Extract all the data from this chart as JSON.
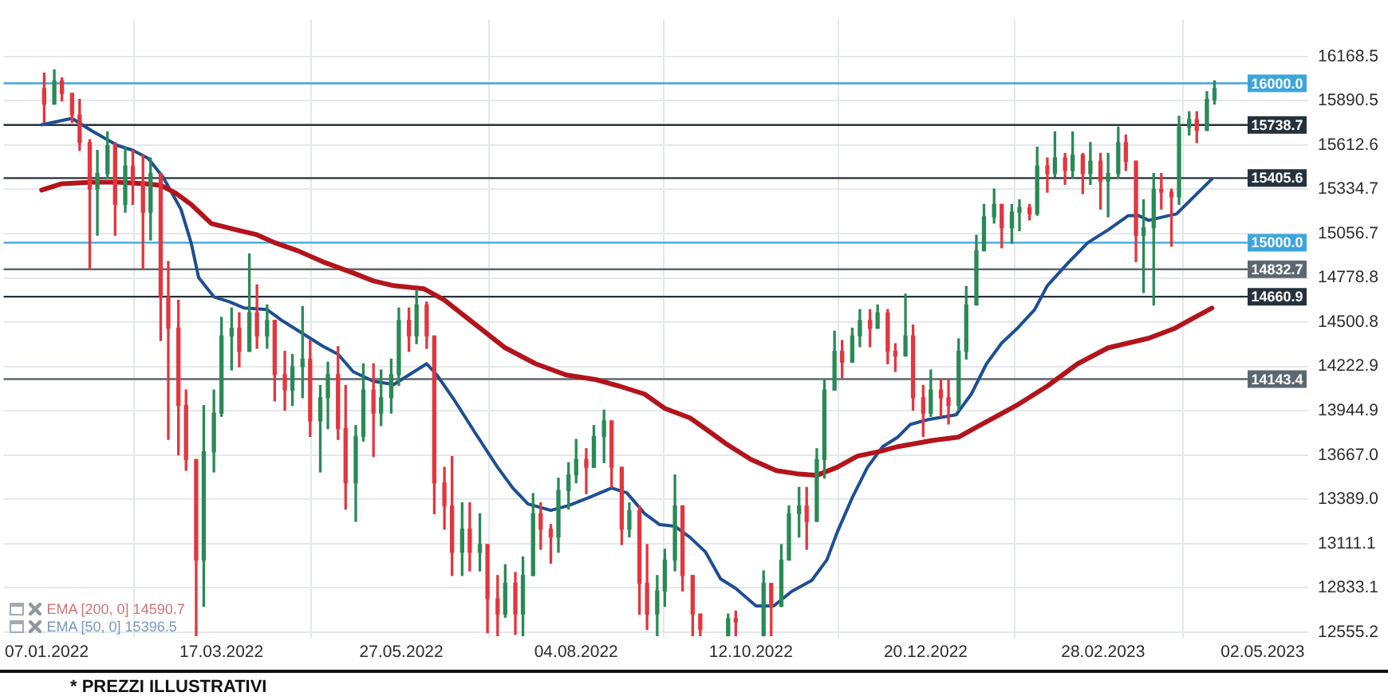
{
  "chart_data": {
    "type": "candlestick",
    "x": [
      "2022-01-06",
      "2022-01-10",
      "2022-01-13",
      "2022-01-17",
      "2022-01-20",
      "2022-01-24",
      "2022-01-27",
      "2022-01-31",
      "2022-02-03",
      "2022-02-07",
      "2022-02-10",
      "2022-02-14",
      "2022-02-17",
      "2022-02-21",
      "2022-02-24",
      "2022-02-28",
      "2022-03-03",
      "2022-03-07",
      "2022-03-10",
      "2022-03-14",
      "2022-03-17",
      "2022-03-21",
      "2022-03-24",
      "2022-03-28",
      "2022-03-31",
      "2022-04-04",
      "2022-04-07",
      "2022-04-11",
      "2022-04-14",
      "2022-04-18",
      "2022-04-21",
      "2022-04-25",
      "2022-04-28",
      "2022-05-02",
      "2022-05-05",
      "2022-05-09",
      "2022-05-12",
      "2022-05-16",
      "2022-05-19",
      "2022-05-23",
      "2022-05-26",
      "2022-05-30",
      "2022-06-02",
      "2022-06-06",
      "2022-06-09",
      "2022-06-13",
      "2022-06-16",
      "2022-06-20",
      "2022-06-23",
      "2022-06-27",
      "2022-06-30",
      "2022-07-04",
      "2022-07-07",
      "2022-07-11",
      "2022-07-14",
      "2022-07-18",
      "2022-07-21",
      "2022-07-25",
      "2022-07-28",
      "2022-08-01",
      "2022-08-04",
      "2022-08-08",
      "2022-08-11",
      "2022-08-15",
      "2022-08-18",
      "2022-08-22",
      "2022-08-25",
      "2022-08-29",
      "2022-09-01",
      "2022-09-05",
      "2022-09-08",
      "2022-09-12",
      "2022-09-15",
      "2022-09-19",
      "2022-09-22",
      "2022-10-03",
      "2022-10-06",
      "2022-10-17",
      "2022-10-20",
      "2022-10-24",
      "2022-10-27",
      "2022-10-31",
      "2022-11-03",
      "2022-11-07",
      "2022-11-10",
      "2022-11-14",
      "2022-11-17",
      "2022-11-21",
      "2022-11-24",
      "2022-11-28",
      "2022-12-01",
      "2022-12-05",
      "2022-12-08",
      "2022-12-12",
      "2022-12-15",
      "2022-12-19",
      "2022-12-22",
      "2022-12-26",
      "2022-12-29",
      "2023-01-02",
      "2023-01-05",
      "2023-01-09",
      "2023-01-12",
      "2023-01-16",
      "2023-01-19",
      "2023-01-23",
      "2023-01-26",
      "2023-01-30",
      "2023-02-02",
      "2023-02-06",
      "2023-02-09",
      "2023-02-13",
      "2023-02-16",
      "2023-02-20",
      "2023-02-23",
      "2023-02-27",
      "2023-03-02",
      "2023-03-06",
      "2023-03-09",
      "2023-03-13",
      "2023-03-16",
      "2023-03-20",
      "2023-03-23",
      "2023-03-27",
      "2023-03-30",
      "2023-04-03",
      "2023-04-06",
      "2023-04-10",
      "2023-04-13"
    ],
    "ohlc": [
      [
        15967,
        16064,
        15754,
        15870
      ],
      [
        15870,
        16084,
        15870,
        16016
      ],
      [
        16016,
        16035,
        15890,
        15937
      ],
      [
        15937,
        15937,
        15754,
        15802
      ],
      [
        15802,
        15899,
        15579,
        15628
      ],
      [
        15628,
        15647,
        14832,
        15337
      ],
      [
        15337,
        15579,
        15046,
        15434
      ],
      [
        15434,
        15696,
        15405,
        15608
      ],
      [
        15608,
        15628,
        15046,
        15240
      ],
      [
        15240,
        15599,
        15191,
        15482
      ],
      [
        15482,
        15579,
        15240,
        15385
      ],
      [
        15385,
        15550,
        14832,
        15191
      ],
      [
        15191,
        15531,
        15016,
        15434
      ],
      [
        15434,
        15434,
        14386,
        14657
      ],
      [
        14657,
        14881,
        13765,
        14463
      ],
      [
        14463,
        14638,
        13668,
        13978
      ],
      [
        13978,
        14075,
        13571,
        13639
      ],
      [
        13639,
        13639,
        12533,
        13008
      ],
      [
        13008,
        13978,
        12717,
        13687
      ],
      [
        13687,
        14075,
        13561,
        13930
      ],
      [
        13930,
        14531,
        13910,
        14415
      ],
      [
        14415,
        14590,
        14201,
        14463
      ],
      [
        14463,
        14560,
        14221,
        14318
      ],
      [
        14318,
        14929,
        14318,
        14560
      ],
      [
        14560,
        14735,
        14337,
        14415
      ],
      [
        14415,
        14609,
        14337,
        14512
      ],
      [
        14512,
        14512,
        14007,
        14172
      ],
      [
        14172,
        14318,
        13949,
        14075
      ],
      [
        14075,
        14298,
        13978,
        14221
      ],
      [
        14221,
        14599,
        14027,
        14269
      ],
      [
        14269,
        14386,
        13784,
        13881
      ],
      [
        13881,
        14104,
        13561,
        14027
      ],
      [
        14027,
        14250,
        13833,
        14172
      ],
      [
        14172,
        14347,
        13765,
        13833
      ],
      [
        13833,
        14104,
        13328,
        13493
      ],
      [
        13493,
        13852,
        13251,
        13784
      ],
      [
        13784,
        14240,
        13755,
        14075
      ],
      [
        14075,
        14240,
        13658,
        13930
      ],
      [
        13930,
        14201,
        13852,
        14027
      ],
      [
        14027,
        14269,
        13930,
        14172
      ],
      [
        14172,
        14590,
        14104,
        14512
      ],
      [
        14512,
        14590,
        14318,
        14415
      ],
      [
        14415,
        14706,
        14366,
        14609
      ],
      [
        14609,
        14628,
        14337,
        14415
      ],
      [
        14415,
        14415,
        13299,
        13493
      ],
      [
        13493,
        13590,
        13202,
        13348
      ],
      [
        13348,
        13658,
        12911,
        13057
      ],
      [
        13057,
        13367,
        12911,
        13202
      ],
      [
        13202,
        13367,
        12940,
        13057
      ],
      [
        13057,
        13299,
        12940,
        13105
      ],
      [
        13105,
        13105,
        12552,
        12765
      ],
      [
        12765,
        12911,
        12533,
        12669
      ],
      [
        12669,
        12979,
        12649,
        12862
      ],
      [
        12862,
        12930,
        12542,
        12669
      ],
      [
        12669,
        13027,
        12533,
        12911
      ],
      [
        12911,
        13425,
        12911,
        13299
      ],
      [
        13299,
        13367,
        13076,
        13202
      ],
      [
        13202,
        13231,
        12988,
        13153
      ],
      [
        13153,
        13522,
        13057,
        13445
      ],
      [
        13445,
        13619,
        13328,
        13542
      ],
      [
        13542,
        13765,
        13493,
        13639
      ],
      [
        13639,
        13707,
        13425,
        13590
      ],
      [
        13590,
        13852,
        13590,
        13784
      ],
      [
        13784,
        13949,
        13619,
        13881
      ],
      [
        13881,
        13881,
        13464,
        13590
      ],
      [
        13590,
        13590,
        13105,
        13202
      ],
      [
        13202,
        13367,
        13153,
        13318
      ],
      [
        13318,
        13348,
        12669,
        12862
      ],
      [
        12862,
        13105,
        12572,
        12669
      ],
      [
        12669,
        12911,
        12533,
        12814
      ],
      [
        12814,
        13076,
        12717,
        13008
      ],
      [
        13008,
        13542,
        12940,
        13348
      ],
      [
        13348,
        13348,
        12814,
        12911
      ],
      [
        12911,
        12911,
        12533,
        12669
      ],
      [
        12669,
        12669,
        12533,
        12572
      ],
      [
        12533,
        12669,
        12533,
        12640
      ],
      [
        12640,
        12688,
        12533,
        12620
      ],
      [
        12533,
        12940,
        12533,
        12862
      ],
      [
        12862,
        12862,
        12533,
        12717
      ],
      [
        12717,
        13105,
        12717,
        13008
      ],
      [
        13008,
        13348,
        13008,
        13299
      ],
      [
        13299,
        13464,
        13153,
        13348
      ],
      [
        13348,
        13464,
        13076,
        13251
      ],
      [
        13251,
        13707,
        13251,
        13639
      ],
      [
        13639,
        14143,
        13522,
        14075
      ],
      [
        14075,
        14444,
        14075,
        14318
      ],
      [
        14318,
        14386,
        14153,
        14250
      ],
      [
        14250,
        14463,
        14250,
        14415
      ],
      [
        14415,
        14580,
        14347,
        14512
      ],
      [
        14512,
        14580,
        14347,
        14463
      ],
      [
        14463,
        14609,
        14463,
        14560
      ],
      [
        14560,
        14580,
        14240,
        14318
      ],
      [
        14318,
        14366,
        14192,
        14289
      ],
      [
        14289,
        14677,
        14289,
        14415
      ],
      [
        14415,
        14483,
        13949,
        14027
      ],
      [
        14027,
        14104,
        13784,
        13930
      ],
      [
        13930,
        14201,
        13910,
        14075
      ],
      [
        14075,
        14143,
        13910,
        14027
      ],
      [
        14027,
        14143,
        13862,
        13978
      ],
      [
        13978,
        14396,
        13949,
        14318
      ],
      [
        14318,
        14725,
        14269,
        14609
      ],
      [
        14609,
        15046,
        14609,
        14949
      ],
      [
        14949,
        15240,
        14949,
        15162
      ],
      [
        15162,
        15337,
        15123,
        15240
      ],
      [
        15240,
        15240,
        14968,
        15094
      ],
      [
        15094,
        15240,
        14997,
        15191
      ],
      [
        15191,
        15269,
        15075,
        15220
      ],
      [
        15220,
        15240,
        15143,
        15181
      ],
      [
        15181,
        15599,
        15172,
        15482
      ],
      [
        15482,
        15531,
        15317,
        15434
      ],
      [
        15434,
        15696,
        15414,
        15531
      ],
      [
        15531,
        15560,
        15366,
        15453
      ],
      [
        15453,
        15696,
        15405,
        15550
      ],
      [
        15550,
        15560,
        15308,
        15434
      ],
      [
        15434,
        15628,
        15366,
        15511
      ],
      [
        15511,
        15560,
        15211,
        15385
      ],
      [
        15385,
        15560,
        15162,
        15434
      ],
      [
        15434,
        15725,
        15405,
        15628
      ],
      [
        15628,
        15676,
        15453,
        15511
      ],
      [
        15511,
        15511,
        14881,
        15046
      ],
      [
        15046,
        15269,
        14687,
        15094
      ],
      [
        15094,
        15434,
        14609,
        15337
      ],
      [
        15337,
        15434,
        15211,
        15317
      ],
      [
        15317,
        15337,
        14978,
        15288
      ],
      [
        15288,
        15793,
        15240,
        15725
      ],
      [
        15725,
        15822,
        15676,
        15773
      ],
      [
        15773,
        15822,
        15628,
        15705
      ],
      [
        15705,
        15948,
        15705,
        15899
      ],
      [
        15899,
        16016,
        15870,
        15967
      ]
    ],
    "colors": [
      "#e3363f",
      "#2a8a56",
      "#e3363f",
      "#e3363f",
      "#e3363f",
      "#e3363f",
      "#2a8a56",
      "#2a8a56",
      "#e3363f",
      "#2a8a56",
      "#e3363f",
      "#e3363f",
      "#2a8a56",
      "#e3363f",
      "#e3363f",
      "#e3363f",
      "#e3363f",
      "#e3363f",
      "#2a8a56",
      "#2a8a56",
      "#2a8a56",
      "#2a8a56",
      "#e3363f",
      "#2a8a56",
      "#e3363f",
      "#2a8a56",
      "#e3363f",
      "#e3363f",
      "#2a8a56",
      "#2a8a56",
      "#e3363f",
      "#2a8a56",
      "#2a8a56",
      "#e3363f",
      "#e3363f",
      "#2a8a56",
      "#2a8a56",
      "#e3363f",
      "#2a8a56",
      "#2a8a56",
      "#2a8a56",
      "#e3363f",
      "#2a8a56",
      "#e3363f",
      "#e3363f",
      "#e3363f",
      "#e3363f",
      "#2a8a56",
      "#e3363f",
      "#2a8a56",
      "#e3363f",
      "#e3363f",
      "#2a8a56",
      "#e3363f",
      "#2a8a56",
      "#2a8a56",
      "#e3363f",
      "#e3363f",
      "#2a8a56",
      "#2a8a56",
      "#2a8a56",
      "#e3363f",
      "#2a8a56",
      "#2a8a56",
      "#e3363f",
      "#e3363f",
      "#2a8a56",
      "#e3363f",
      "#e3363f",
      "#2a8a56",
      "#2a8a56",
      "#2a8a56",
      "#e3363f",
      "#e3363f",
      "#e3363f",
      "#2a8a56",
      "#e3363f",
      "#2a8a56",
      "#e3363f",
      "#2a8a56",
      "#2a8a56",
      "#2a8a56",
      "#e3363f",
      "#2a8a56",
      "#2a8a56",
      "#2a8a56",
      "#e3363f",
      "#2a8a56",
      "#2a8a56",
      "#e3363f",
      "#2a8a56",
      "#e3363f",
      "#e3363f",
      "#2a8a56",
      "#e3363f",
      "#e3363f",
      "#2a8a56",
      "#e3363f",
      "#e3363f",
      "#2a8a56",
      "#2a8a56",
      "#2a8a56",
      "#2a8a56",
      "#2a8a56",
      "#e3363f",
      "#2a8a56",
      "#2a8a56",
      "#e3363f",
      "#2a8a56",
      "#e3363f",
      "#2a8a56",
      "#e3363f",
      "#2a8a56",
      "#e3363f",
      "#2a8a56",
      "#e3363f",
      "#2a8a56",
      "#2a8a56",
      "#e3363f",
      "#e3363f",
      "#2a8a56",
      "#2a8a56",
      "#e3363f",
      "#e3363f",
      "#2a8a56",
      "#2a8a56",
      "#e3363f",
      "#2a8a56",
      "#2a8a56"
    ],
    "series": [
      {
        "type": "line",
        "name": "EMA [200, 0] 14590.7",
        "color": "#b3141b",
        "x": [
          "2022-01-05",
          "2022-01-13",
          "2022-01-25",
          "2022-02-04",
          "2022-02-15",
          "2022-02-21",
          "2022-02-27",
          "2022-03-05",
          "2022-03-13",
          "2022-03-23",
          "2022-03-31",
          "2022-04-07",
          "2022-04-16",
          "2022-04-26",
          "2022-05-08",
          "2022-05-16",
          "2022-05-24",
          "2022-06-05",
          "2022-06-13",
          "2022-06-25",
          "2022-07-07",
          "2022-07-19",
          "2022-07-31",
          "2022-08-12",
          "2022-08-21",
          "2022-08-31",
          "2022-09-08",
          "2022-09-18",
          "2022-09-26",
          "2022-10-02",
          "2022-10-12",
          "2022-10-22",
          "2022-10-30",
          "2022-11-07",
          "2022-11-15",
          "2022-11-23",
          "2022-12-02",
          "2022-12-09",
          "2022-12-23",
          "2023-01-02",
          "2023-01-10",
          "2023-01-25",
          "2023-02-06",
          "2023-02-18",
          "2023-03-02",
          "2023-03-10",
          "2023-03-18",
          "2023-03-28",
          "2023-04-05",
          "2023-04-12"
        ],
        "values": [
          15330,
          15370,
          15380,
          15380,
          15370,
          15360,
          15310,
          15240,
          15120,
          15080,
          15050,
          15000,
          14950,
          14880,
          14810,
          14760,
          14730,
          14710,
          14640,
          14490,
          14340,
          14240,
          14170,
          14140,
          14100,
          14050,
          13960,
          13900,
          13810,
          13740,
          13640,
          13570,
          13550,
          13540,
          13590,
          13660,
          13690,
          13720,
          13760,
          13780,
          13850,
          13980,
          14100,
          14240,
          14340,
          14370,
          14400,
          14460,
          14530,
          14590
        ]
      },
      {
        "type": "line",
        "name": "EMA [50, 0] 15396.5",
        "color": "#1d4f91",
        "x": [
          "2022-01-05",
          "2022-01-17",
          "2022-01-25",
          "2022-02-04",
          "2022-02-10",
          "2022-02-16",
          "2022-02-22",
          "2022-03-01",
          "2022-03-05",
          "2022-03-08",
          "2022-03-14",
          "2022-03-20",
          "2022-03-26",
          "2022-04-04",
          "2022-04-10",
          "2022-04-18",
          "2022-04-26",
          "2022-05-02",
          "2022-05-08",
          "2022-05-16",
          "2022-05-24",
          "2022-05-30",
          "2022-06-06",
          "2022-06-10",
          "2022-06-17",
          "2022-06-25",
          "2022-07-04",
          "2022-07-10",
          "2022-07-16",
          "2022-07-25",
          "2022-08-01",
          "2022-08-09",
          "2022-08-18",
          "2022-08-24",
          "2022-08-31",
          "2022-09-06",
          "2022-09-12",
          "2022-09-18",
          "2022-09-24",
          "2022-09-30",
          "2022-10-06",
          "2022-10-14",
          "2022-10-21",
          "2022-10-28",
          "2022-11-05",
          "2022-11-11",
          "2022-11-15",
          "2022-11-21",
          "2022-11-27",
          "2022-12-03",
          "2022-12-09",
          "2022-12-14",
          "2022-12-21",
          "2023-01-01",
          "2023-01-07",
          "2023-01-13",
          "2023-01-19",
          "2023-01-25",
          "2023-02-01",
          "2023-02-06",
          "2023-02-14",
          "2023-02-22",
          "2023-03-02",
          "2023-03-10",
          "2023-03-14",
          "2023-03-18",
          "2023-03-26",
          "2023-03-29",
          "2023-04-05",
          "2023-04-12"
        ],
        "values": [
          15740,
          15780,
          15700,
          15610,
          15580,
          15530,
          15410,
          15210,
          15000,
          14780,
          14660,
          14630,
          14590,
          14580,
          14510,
          14430,
          14350,
          14300,
          14190,
          14130,
          14110,
          14170,
          14240,
          14170,
          14010,
          13810,
          13590,
          13460,
          13360,
          13320,
          13350,
          13400,
          13460,
          13430,
          13300,
          13230,
          13220,
          13150,
          13060,
          12890,
          12830,
          12720,
          12720,
          12810,
          12880,
          13010,
          13180,
          13400,
          13590,
          13720,
          13780,
          13860,
          13890,
          13920,
          14050,
          14240,
          14370,
          14460,
          14580,
          14730,
          14870,
          15000,
          15080,
          15170,
          15170,
          15140,
          15170,
          15180,
          15290,
          15400
        ]
      }
    ],
    "xlim": [
      "2021-12-21",
      "2023-05-20"
    ],
    "xticks": [
      {
        "value": "2022-01-07",
        "label": "07.01.2022"
      },
      {
        "value": "2022-03-17",
        "label": "17.03.2022"
      },
      {
        "value": "2022-05-27",
        "label": "27.05.2022"
      },
      {
        "value": "2022-08-04",
        "label": "04.08.2022"
      },
      {
        "value": "2022-10-12",
        "label": "12.10.2022"
      },
      {
        "value": "2022-12-20",
        "label": "20.12.2022"
      },
      {
        "value": "2023-02-28",
        "label": "28.02.2023"
      },
      {
        "value": "2023-05-02",
        "label": "02.05.2023"
      }
    ],
    "ylim": [
      12520,
      16400
    ],
    "yticks": [
      16168.5,
      15890.5,
      15612.6,
      15334.7,
      15056.7,
      14778.8,
      14500.8,
      14222.9,
      13944.9,
      {
        "value": 13667,
        "label": "13667.0"
      },
      {
        "value": 13389,
        "label": "13389.0"
      },
      13111.1,
      12833.1,
      12555.2
    ],
    "ref_lines": [
      {
        "axis": "y",
        "value": 16000,
        "label": "16000.0",
        "color": "#3da5dd"
      },
      {
        "axis": "y",
        "value": 15738.7,
        "label": "15738.7",
        "color": "#25313b"
      },
      {
        "axis": "y",
        "value": 15405.6,
        "label": "15405.6",
        "color": "#25313b"
      },
      {
        "axis": "y",
        "value": 15000,
        "label": "15000.0",
        "color": "#3da5dd"
      },
      {
        "axis": "y",
        "value": 14832.7,
        "label": "14832.7",
        "color": "#5c6770"
      },
      {
        "axis": "y",
        "value": 14660.9,
        "label": "14660.9",
        "color": "#25313b"
      },
      {
        "axis": "y",
        "value": 14143.4,
        "label": "14143.4",
        "color": "#5c6770"
      }
    ],
    "grid": true,
    "legend": "bottom left",
    "marker": "none",
    "annotations": [
      "* PREZZI ILLUSTRATIVI"
    ]
  }
}
